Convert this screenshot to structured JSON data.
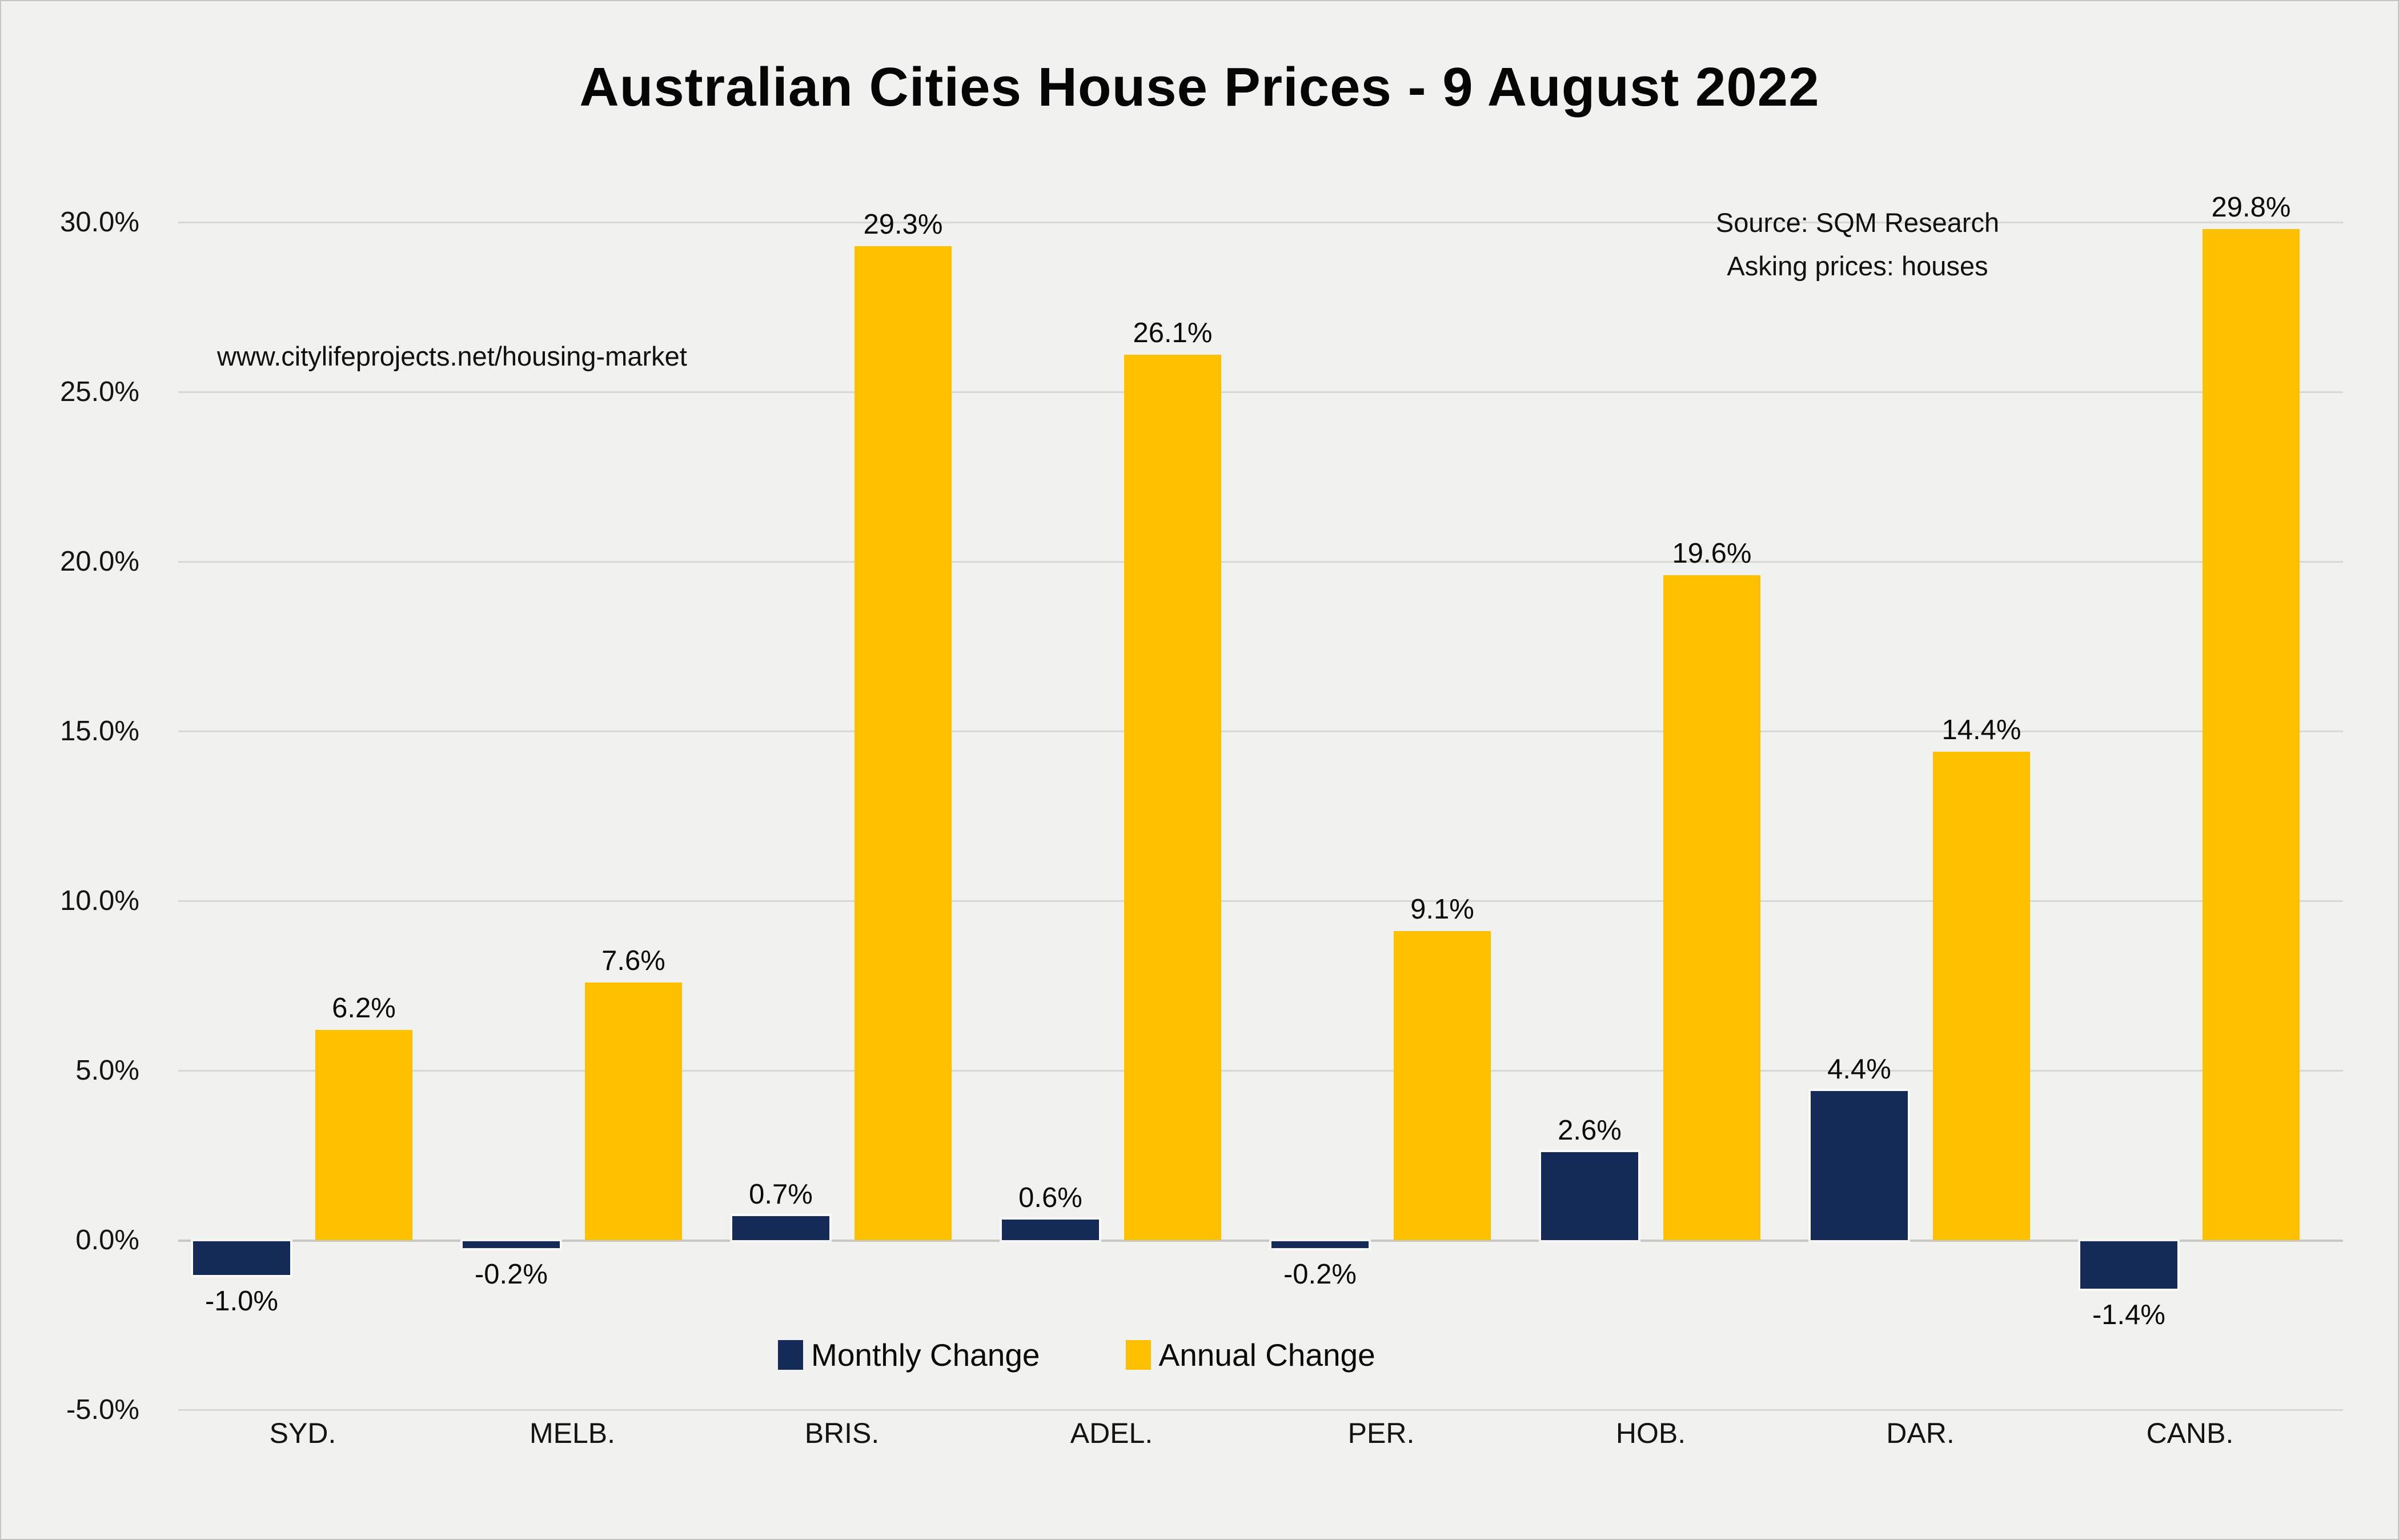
{
  "chart": {
    "title": "Australian Cities House Prices - 9 August 2022",
    "source_line1": "Source:  SQM Research",
    "source_line2": "Asking prices: houses",
    "watermark_url": "www.citylifeprojects.net/housing-market"
  },
  "chart_data": {
    "type": "bar",
    "title": "Australian Cities House Prices - 9 August 2022",
    "source": "Source: SQM Research | Asking prices: houses",
    "categories": [
      "SYD.",
      "MELB.",
      "BRIS.",
      "ADEL.",
      "PER.",
      "HOB.",
      "DAR.",
      "CANB."
    ],
    "series": [
      {
        "name": "Monthly Change",
        "color": "#142b57",
        "values": [
          -1.0,
          -0.2,
          0.7,
          0.6,
          -0.2,
          2.6,
          4.4,
          -1.4
        ],
        "labels": [
          "-1.0%",
          "-0.2%",
          "0.7%",
          "0.6%",
          "-0.2%",
          "2.6%",
          "4.4%",
          "-1.4%"
        ]
      },
      {
        "name": "Annual Change",
        "color": "#ffc000",
        "values": [
          6.2,
          7.6,
          29.3,
          26.1,
          9.1,
          19.6,
          14.4,
          29.8
        ],
        "labels": [
          "6.2%",
          "7.6%",
          "29.3%",
          "26.1%",
          "9.1%",
          "19.6%",
          "14.4%",
          "29.8%"
        ]
      }
    ],
    "xlabel": "",
    "ylabel": "",
    "ylim": [
      -5,
      31
    ],
    "yticks": [
      30,
      25,
      20,
      15,
      10,
      5,
      0,
      -5
    ],
    "ytick_labels": [
      "30.0%",
      "25.0%",
      "20.0%",
      "15.0%",
      "10.0%",
      "5.0%",
      "0.0%",
      "-5.0%"
    ],
    "grid": true,
    "legend_position": "bottom-inside"
  }
}
